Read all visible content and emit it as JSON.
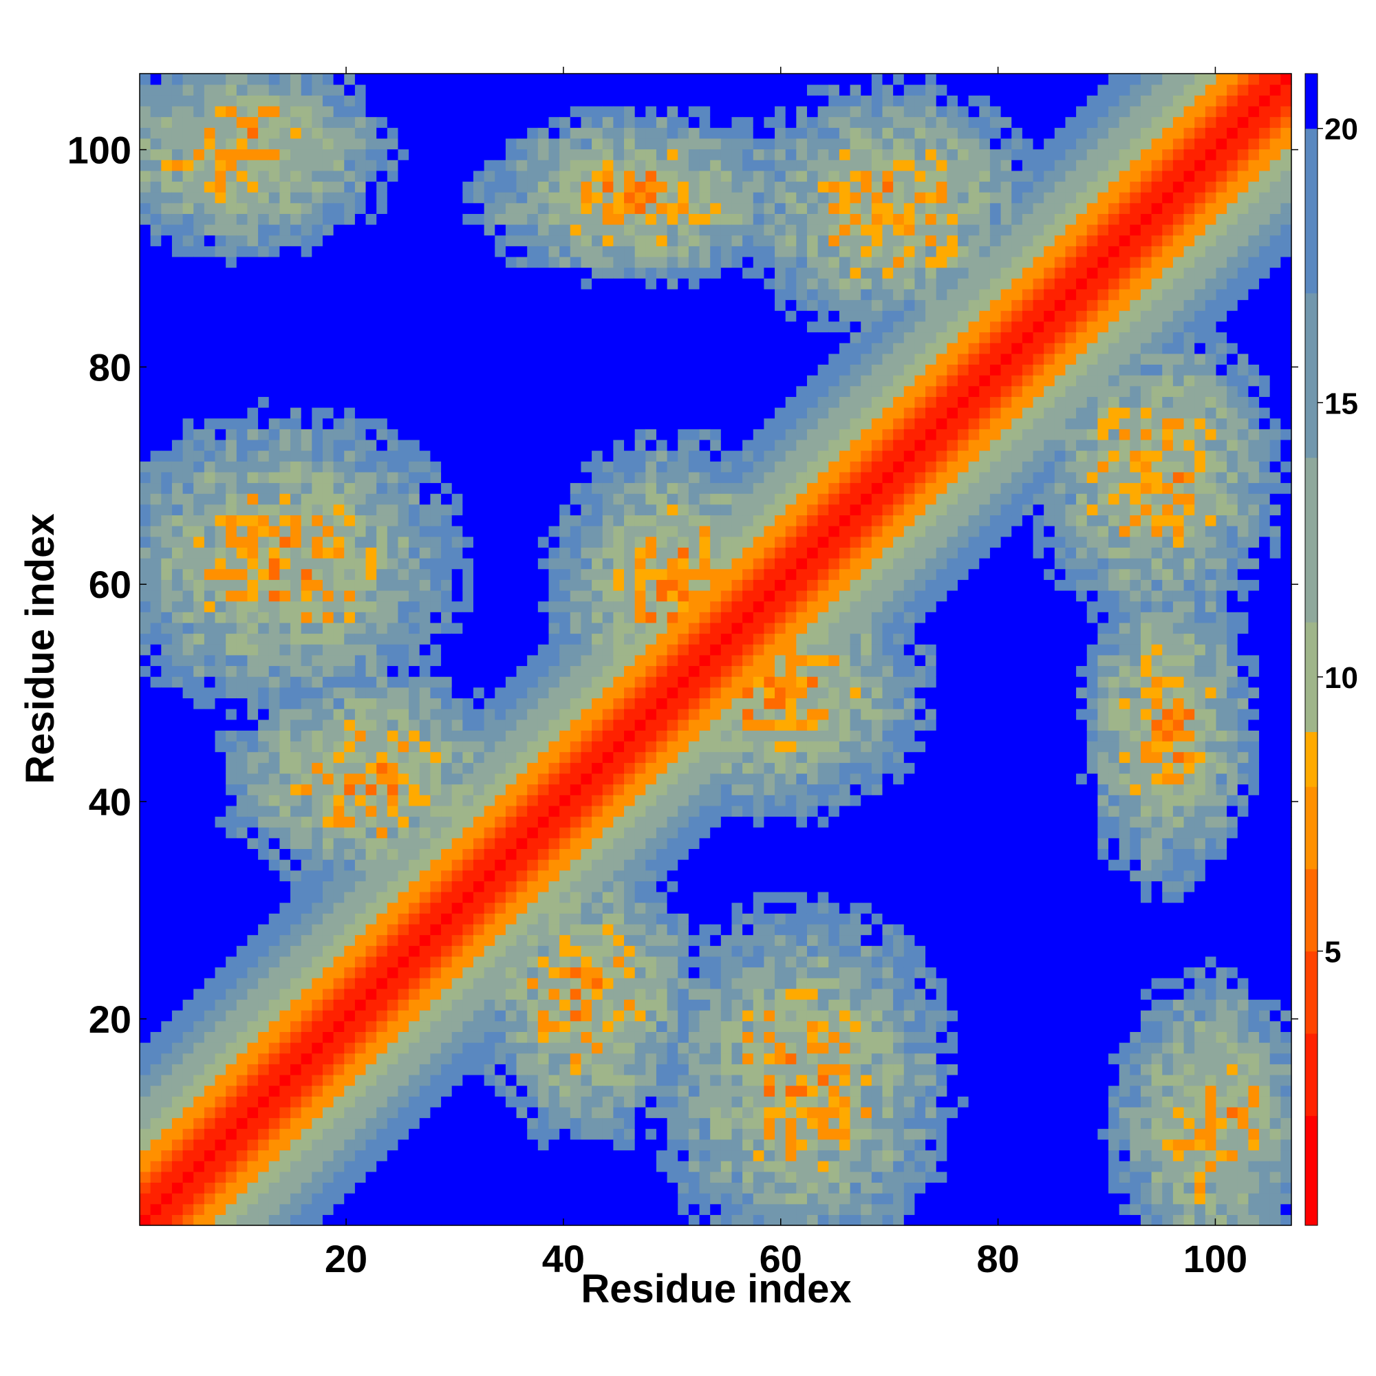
{
  "chart_data": {
    "type": "heatmap",
    "title": "",
    "xlabel": "Residue index",
    "ylabel": "Residue index",
    "n_residues": 107,
    "xlim": [
      1,
      107
    ],
    "ylim": [
      1,
      107
    ],
    "xticks": [
      20,
      40,
      60,
      80,
      100
    ],
    "yticks": [
      20,
      40,
      60,
      80,
      100
    ],
    "value_range": [
      0,
      21
    ],
    "colorbar": {
      "ticks": [
        5,
        10,
        15,
        20
      ],
      "levels": [
        {
          "min": 0,
          "max": 2,
          "color": "#ff0000"
        },
        {
          "min": 2,
          "max": 3.5,
          "color": "#ff2200"
        },
        {
          "min": 3.5,
          "max": 5,
          "color": "#ff4400"
        },
        {
          "min": 5,
          "max": 6.5,
          "color": "#ff6a00"
        },
        {
          "min": 6.5,
          "max": 8,
          "color": "#ff9000"
        },
        {
          "min": 8,
          "max": 9,
          "color": "#ffaa00"
        },
        {
          "min": 9,
          "max": 11,
          "color": "#9fb58a"
        },
        {
          "min": 11,
          "max": 14,
          "color": "#8fa89c"
        },
        {
          "min": 14,
          "max": 17,
          "color": "#7297ad"
        },
        {
          "min": 17,
          "max": 20,
          "color": "#5a88c0"
        },
        {
          "min": 20,
          "max": 21,
          "color": "#0000ff"
        }
      ]
    },
    "description_values": "Symmetric residue-residue distance map: values rise from ~1 on the diagonal to >20 (blue) far from it, with contact clusters near residues 1-20/90-107, 1-25/60-75, 10-30/35-50, 35-50/20-40, 60-80/80-105, 60-75/1-20, 85-107/1-20, 85-107/55-80 and 40-60/45-75."
  }
}
